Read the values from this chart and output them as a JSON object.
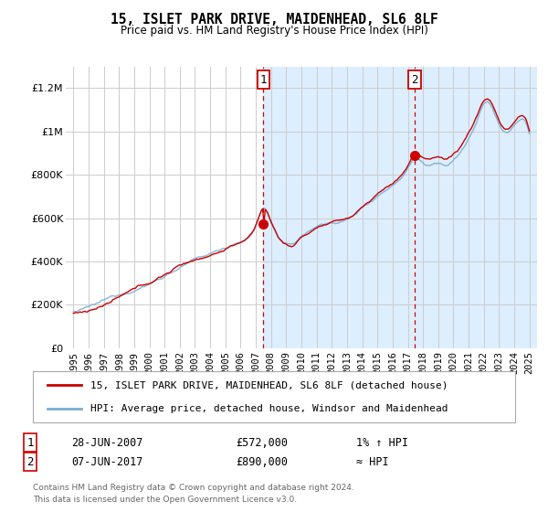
{
  "title": "15, ISLET PARK DRIVE, MAIDENHEAD, SL6 8LF",
  "subtitle": "Price paid vs. HM Land Registry's House Price Index (HPI)",
  "legend_line1": "15, ISLET PARK DRIVE, MAIDENHEAD, SL6 8LF (detached house)",
  "legend_line2": "HPI: Average price, detached house, Windsor and Maidenhead",
  "ann1_label": "1",
  "ann1_date": "28-JUN-2007",
  "ann1_price": "£572,000",
  "ann1_note": "1% ↑ HPI",
  "ann1_x": 2007.5,
  "ann1_y": 572000,
  "ann2_label": "2",
  "ann2_date": "07-JUN-2017",
  "ann2_price": "£890,000",
  "ann2_note": "≈ HPI",
  "ann2_x": 2017.44,
  "ann2_y": 890000,
  "footer": "Contains HM Land Registry data © Crown copyright and database right 2024.\nThis data is licensed under the Open Government Licence v3.0.",
  "ylim": [
    0,
    1300000
  ],
  "xlim": [
    1994.5,
    2025.5
  ],
  "yticks": [
    0,
    200000,
    400000,
    600000,
    800000,
    1000000,
    1200000
  ],
  "ylabels": [
    "£0",
    "£200K",
    "£400K",
    "£600K",
    "£800K",
    "£1M",
    "£1.2M"
  ],
  "background_color": "#ffffff",
  "shaded_region_start": 2007.5,
  "line_color_property": "#cc0000",
  "line_color_hpi": "#7aadd4",
  "grid_color": "#cccccc",
  "shade_color": "#ddeeff",
  "title_fontsize": 11,
  "subtitle_fontsize": 9
}
